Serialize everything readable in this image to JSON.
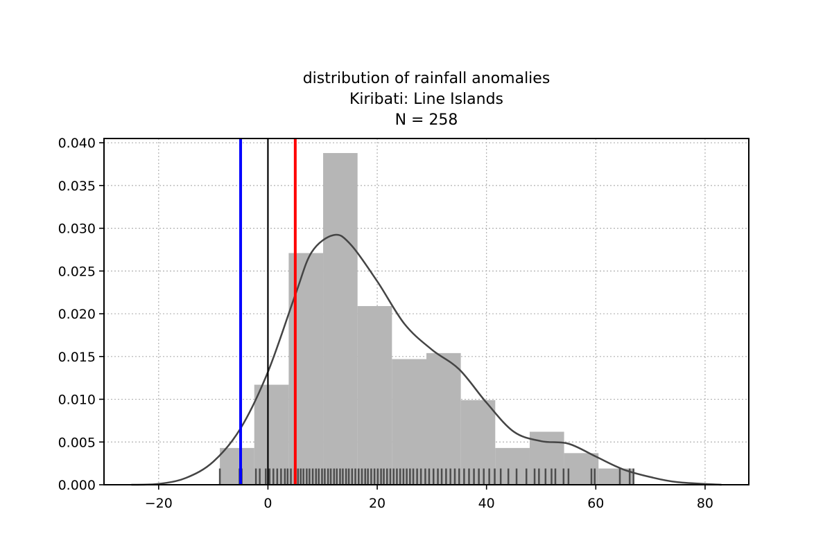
{
  "chart_data": {
    "type": "histogram",
    "title_lines": [
      "distribution of rainfall anomalies",
      "Kiribati: Line Islands",
      "N = 258"
    ],
    "xlabel": "",
    "ylabel": "",
    "xlim": [
      -30,
      88
    ],
    "ylim": [
      0,
      0.0405
    ],
    "grid": true,
    "x_ticks": [
      -20,
      0,
      20,
      40,
      60,
      80
    ],
    "x_tick_labels": [
      "−20",
      "0",
      "20",
      "40",
      "60",
      "80"
    ],
    "y_ticks": [
      0.0,
      0.005,
      0.01,
      0.015,
      0.02,
      0.025,
      0.03,
      0.035,
      0.04
    ],
    "y_tick_labels": [
      "0.000",
      "0.005",
      "0.010",
      "0.015",
      "0.020",
      "0.025",
      "0.030",
      "0.035",
      "0.040"
    ],
    "histogram": {
      "color": "#b6b6b6",
      "bin_edges": [
        -8.8,
        -2.5,
        3.8,
        10.1,
        16.4,
        22.7,
        29.0,
        35.3,
        41.6,
        47.9,
        54.2,
        60.5,
        66.8
      ],
      "density": [
        0.0043,
        0.0117,
        0.0271,
        0.0388,
        0.0209,
        0.0147,
        0.0154,
        0.0099,
        0.0043,
        0.0062,
        0.0037,
        0.0019
      ]
    },
    "kde": {
      "color": "#444444",
      "x": [
        -25,
        -20,
        -15,
        -10,
        -5,
        0,
        5,
        8,
        12,
        15,
        20,
        25,
        30,
        35,
        40,
        45,
        50,
        55,
        60,
        65,
        70,
        75,
        83
      ],
      "y": [
        0.0,
        0.0001,
        0.0008,
        0.0027,
        0.0066,
        0.0132,
        0.0222,
        0.0272,
        0.0292,
        0.0282,
        0.0238,
        0.0188,
        0.0158,
        0.0135,
        0.0096,
        0.0062,
        0.0051,
        0.0048,
        0.0033,
        0.0018,
        0.0009,
        0.0003,
        0.0
      ]
    },
    "rug": {
      "color": "#4d4d4d",
      "height": 0.0019,
      "x": [
        -8.8,
        -5.2,
        -4.8,
        -2.2,
        -1.5,
        -0.4,
        0.3,
        1.0,
        1.7,
        2.4,
        3.1,
        3.6,
        4.2,
        4.9,
        5.5,
        6.0,
        6.5,
        7.1,
        7.6,
        8.2,
        8.8,
        9.3,
        9.9,
        10.4,
        11.0,
        11.5,
        12.1,
        12.6,
        13.2,
        13.7,
        14.3,
        14.8,
        15.4,
        16.0,
        16.6,
        17.2,
        17.8,
        18.3,
        18.9,
        19.5,
        20.1,
        20.7,
        21.2,
        21.8,
        22.4,
        23.0,
        23.6,
        24.2,
        24.8,
        25.4,
        26.0,
        26.6,
        27.3,
        28.0,
        28.8,
        29.5,
        30.3,
        31.1,
        31.8,
        32.6,
        33.4,
        34.2,
        35.0,
        35.9,
        36.8,
        37.7,
        38.6,
        39.5,
        40.5,
        41.5,
        42.6,
        44.0,
        45.5,
        47.3,
        48.8,
        49.6,
        50.8,
        51.9,
        52.6,
        54.1,
        55.0,
        59.2,
        59.8,
        64.4,
        66.2,
        66.9
      ]
    },
    "vertical_lines": [
      {
        "x": -5.0,
        "color": "#0000ff"
      },
      {
        "x": 0.0,
        "color": "#000000"
      },
      {
        "x": 5.0,
        "color": "#ff0000"
      }
    ]
  }
}
